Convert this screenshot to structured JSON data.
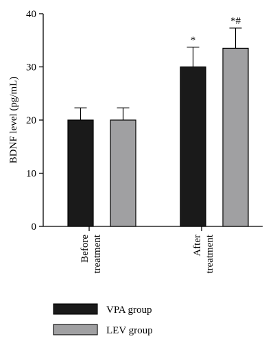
{
  "chart_data": {
    "type": "bar",
    "ylabel": "BDNF level (pg/mL)",
    "ylim": [
      0,
      40
    ],
    "yticks": [
      0,
      10,
      20,
      30,
      40
    ],
    "groups": [
      {
        "label_line1": "Before",
        "label_line2": "treatment"
      },
      {
        "label_line1": "After",
        "label_line2": "treatment"
      }
    ],
    "series": [
      {
        "name": "VPA group",
        "color": "#1a1a1a",
        "values": [
          20.0,
          30.0
        ],
        "errors": [
          2.3,
          3.7
        ]
      },
      {
        "name": "LEV group",
        "color": "#a0a0a2",
        "values": [
          20.0,
          33.5
        ],
        "errors": [
          2.3,
          3.8
        ]
      }
    ],
    "annotations": [
      {
        "group": 1,
        "series": 0,
        "text": "*"
      },
      {
        "group": 1,
        "series": 1,
        "text": "*#"
      }
    ],
    "legend_position": "bottom-left",
    "grid": false
  }
}
